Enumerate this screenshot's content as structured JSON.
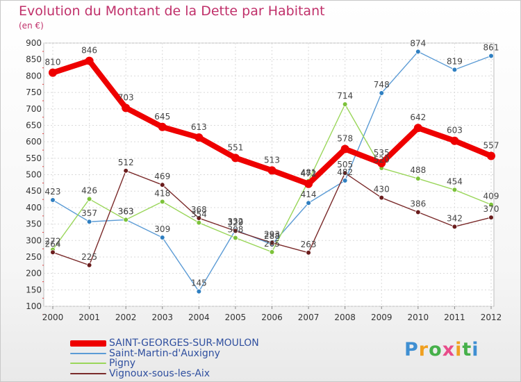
{
  "title": "Evolution du Montant de la Dette par Habitant",
  "unit": "(en €)",
  "logo": {
    "text": "Proxiti",
    "colors": [
      "#3f8fd2",
      "#f0a020",
      "#46b04a",
      "#e84c8a",
      "#f0a020",
      "#46b04a",
      "#3f8fd2"
    ]
  },
  "chart_data": {
    "type": "line",
    "x": [
      "2000",
      "2001",
      "2002",
      "2003",
      "2004",
      "2005",
      "2006",
      "2007",
      "2008",
      "2009",
      "2010",
      "2011",
      "2012"
    ],
    "ylim": [
      100,
      900
    ],
    "yticks": [
      100,
      150,
      200,
      250,
      300,
      350,
      400,
      450,
      500,
      550,
      600,
      650,
      700,
      750,
      800,
      850,
      900
    ],
    "grid": true,
    "legend_position": "bottom-left",
    "series": [
      {
        "name": "Saint-Martin-d'Auxigny",
        "color": "#5b9bd5",
        "marker": "#2f7fc1",
        "values": [
          423,
          357,
          363,
          309,
          145,
          332,
          288,
          414,
          482,
          748,
          874,
          819,
          861
        ],
        "labels": [
          "423",
          "357",
          "363",
          "309",
          "145",
          "332",
          "288",
          "414",
          "482",
          "748",
          "874",
          "819",
          "861"
        ]
      },
      {
        "name": "Pigny",
        "color": "#9ad65a",
        "marker": "#7cc23a",
        "values": [
          272,
          426,
          363,
          418,
          354,
          308,
          265,
          481,
          714,
          520,
          488,
          454,
          409
        ],
        "labels": [
          "272",
          "426",
          "363",
          "418",
          "354",
          "308",
          "265",
          "481",
          "714",
          "520",
          "488",
          "454",
          "409"
        ]
      },
      {
        "name": "Vignoux-sous-les-Aix",
        "color": "#7a2a2a",
        "marker": "#6a1c1c",
        "values": [
          264,
          225,
          512,
          469,
          368,
          329,
          293,
          263,
          505,
          430,
          386,
          342,
          370
        ],
        "labels": [
          "264",
          "225",
          "512",
          "469",
          "368",
          "329",
          "293",
          "263",
          "505",
          "430",
          "386",
          "342",
          "370"
        ]
      },
      {
        "name": "SAINT-GEORGES-SUR-MOULON",
        "color": "#ee0000",
        "marker": "#ee0000",
        "values": [
          810,
          846,
          703,
          645,
          613,
          551,
          513,
          472,
          578,
          535,
          642,
          603,
          557
        ],
        "labels": [
          "810",
          "846",
          "703",
          "645",
          "613",
          "551",
          "513",
          "472",
          "578",
          "535",
          "642",
          "603",
          "557"
        ]
      }
    ]
  },
  "legend": [
    {
      "name": "SAINT-GEORGES-SUR-MOULON",
      "color": "#ee0000",
      "thickness": 9
    },
    {
      "name": "Saint-Martin-d'Auxigny",
      "color": "#5b9bd5",
      "thickness": 2
    },
    {
      "name": "Pigny",
      "color": "#9ad65a",
      "thickness": 2
    },
    {
      "name": "Vignoux-sous-les-Aix",
      "color": "#7a2a2a",
      "thickness": 2
    }
  ]
}
